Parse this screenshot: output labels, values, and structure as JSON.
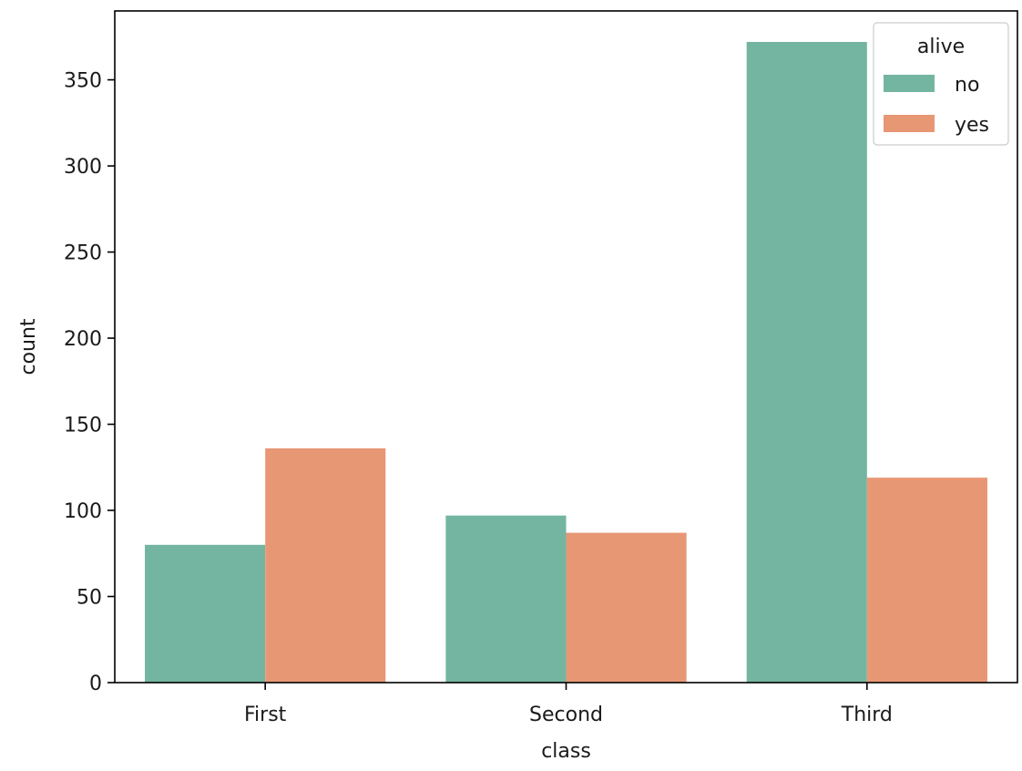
{
  "chart_data": {
    "type": "bar",
    "title": "",
    "xlabel": "class",
    "ylabel": "count",
    "categories": [
      "First",
      "Second",
      "Third"
    ],
    "series": [
      {
        "name": "no",
        "color": "#73b5a0",
        "values": [
          80,
          97,
          372
        ]
      },
      {
        "name": "yes",
        "color": "#e89775",
        "values": [
          136,
          87,
          119
        ]
      }
    ],
    "ylim": [
      0,
      390
    ],
    "yticks": [
      0,
      50,
      100,
      150,
      200,
      250,
      300,
      350
    ],
    "grid": false,
    "legend": {
      "title": "alive",
      "placement": "top-right"
    }
  }
}
